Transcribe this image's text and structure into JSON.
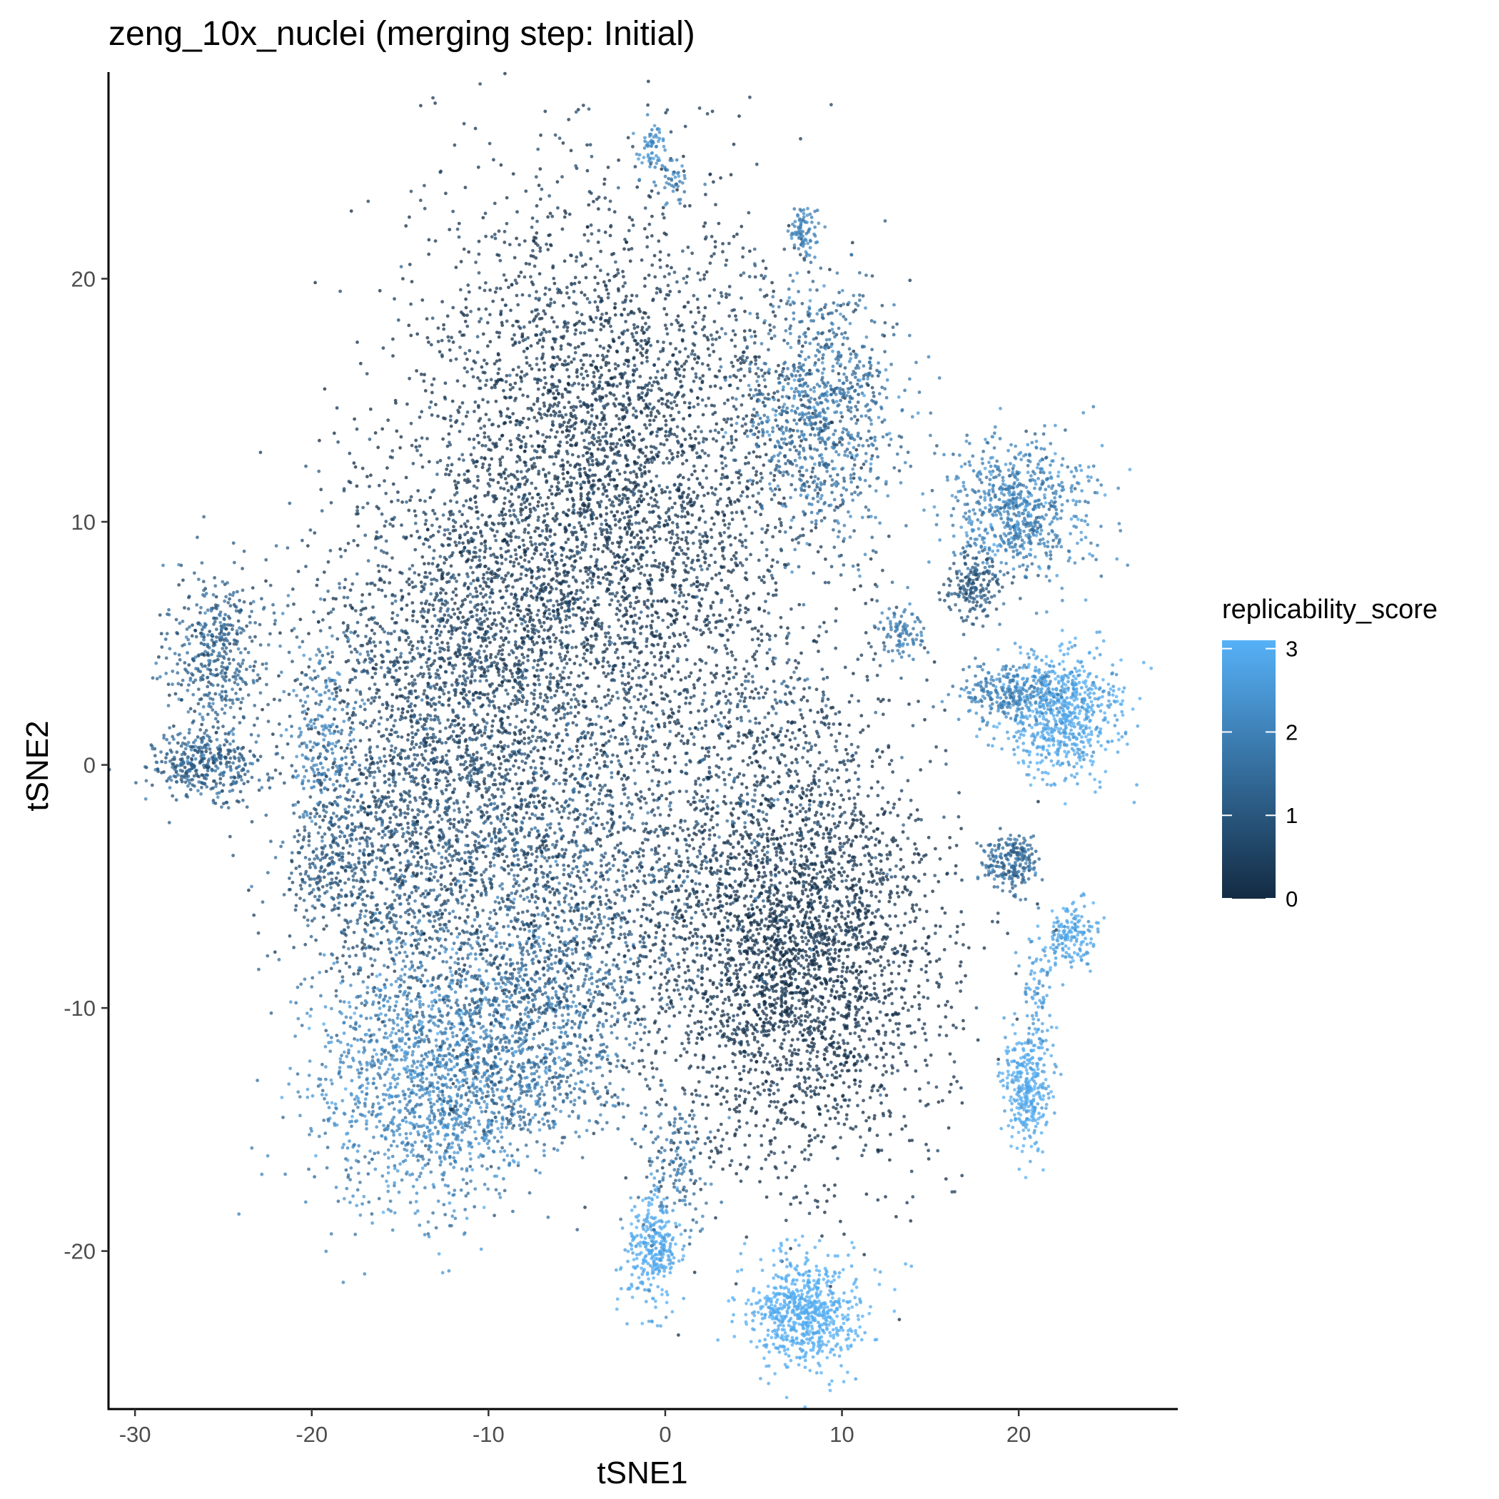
{
  "chart_data": {
    "type": "scatter",
    "title": "zeng_10x_nuclei (merging step: Initial)",
    "xlabel": "tSNE1",
    "ylabel": "tSNE2",
    "xlim": [
      -31.5,
      29
    ],
    "ylim": [
      -26.5,
      28.5
    ],
    "x_ticks": [
      -30,
      -20,
      -10,
      0,
      10,
      20
    ],
    "y_ticks": [
      -20,
      -10,
      0,
      10,
      20
    ],
    "x_tick_labels": [
      "-30",
      "-20",
      "-10",
      "0",
      "10",
      "20"
    ],
    "y_tick_labels": [
      "-20",
      "-10",
      "0",
      "10",
      "20"
    ],
    "grid": false,
    "color_variable": "replicability_score",
    "color_range": [
      0,
      3.1
    ],
    "color_low": "#132b43",
    "color_high": "#56b1f7",
    "legend": {
      "title": "replicability_score",
      "position": "right",
      "ticks": [
        0,
        1,
        2,
        3
      ],
      "tick_labels": [
        "0",
        "1",
        "2",
        "3"
      ]
    },
    "clusters": [
      {
        "cx": -3.5,
        "cy": 11.5,
        "sx": 5.5,
        "sy": 6.0,
        "score": 0.25,
        "score_sd": 0.3,
        "n": 4200
      },
      {
        "cx": -12,
        "cy": 3,
        "sx": 4.5,
        "sy": 4.0,
        "score": 0.55,
        "score_sd": 0.4,
        "n": 2000
      },
      {
        "cx": -15,
        "cy": -4.5,
        "sx": 3.0,
        "sy": 3.0,
        "score": 0.9,
        "score_sd": 0.4,
        "n": 900
      },
      {
        "cx": -19.5,
        "cy": 1.5,
        "sx": 1.0,
        "sy": 2.0,
        "score": 2.0,
        "score_sd": 0.3,
        "n": 200
      },
      {
        "cx": -19,
        "cy": -4,
        "sx": 1.2,
        "sy": 1.5,
        "score": 1.0,
        "score_sd": 0.3,
        "n": 200
      },
      {
        "cx": -14,
        "cy": -13,
        "sx": 3.0,
        "sy": 2.6,
        "score": 2.1,
        "score_sd": 0.4,
        "n": 1300
      },
      {
        "cx": -8,
        "cy": -11,
        "sx": 3.0,
        "sy": 2.8,
        "score": 1.5,
        "score_sd": 0.5,
        "n": 1100
      },
      {
        "cx": -5,
        "cy": -5,
        "sx": 4.0,
        "sy": 3.5,
        "score": 0.8,
        "score_sd": 0.5,
        "n": 1200
      },
      {
        "cx": 7.5,
        "cy": -8,
        "sx": 4.0,
        "sy": 4.2,
        "score": 0.15,
        "score_sd": 0.25,
        "n": 3000
      },
      {
        "cx": 9,
        "cy": 14.5,
        "sx": 2.3,
        "sy": 2.6,
        "score": 1.6,
        "score_sd": 0.45,
        "n": 900
      },
      {
        "cx": -25.5,
        "cy": 4.5,
        "sx": 1.4,
        "sy": 1.7,
        "score": 1.2,
        "score_sd": 0.4,
        "n": 450
      },
      {
        "cx": -26,
        "cy": 0,
        "sx": 1.6,
        "sy": 0.7,
        "score": 1.2,
        "score_sd": 0.4,
        "n": 350
      },
      {
        "cx": 20,
        "cy": 10.5,
        "sx": 2.0,
        "sy": 1.4,
        "score": 2.0,
        "score_sd": 0.4,
        "n": 700
      },
      {
        "cx": 17.5,
        "cy": 7.3,
        "sx": 0.8,
        "sy": 0.7,
        "score": 1.0,
        "score_sd": 0.3,
        "n": 180
      },
      {
        "cx": 22.5,
        "cy": 2.2,
        "sx": 1.6,
        "sy": 1.3,
        "score": 2.8,
        "score_sd": 0.3,
        "n": 700
      },
      {
        "cx": 19.5,
        "cy": 3.0,
        "sx": 1.4,
        "sy": 0.6,
        "score": 2.0,
        "score_sd": 0.3,
        "n": 250
      },
      {
        "cx": 19.5,
        "cy": -4,
        "sx": 0.8,
        "sy": 0.6,
        "score": 1.5,
        "score_sd": 0.3,
        "n": 220
      },
      {
        "cx": 23,
        "cy": -7.0,
        "sx": 0.8,
        "sy": 0.7,
        "score": 2.8,
        "score_sd": 0.2,
        "n": 160
      },
      {
        "cx": 21,
        "cy": -10,
        "sx": 0.5,
        "sy": 1.6,
        "score": 2.6,
        "score_sd": 0.3,
        "n": 100
      },
      {
        "cx": 20.5,
        "cy": -13.5,
        "sx": 0.7,
        "sy": 1.2,
        "score": 2.9,
        "score_sd": 0.2,
        "n": 300
      },
      {
        "cx": 7.8,
        "cy": -22.5,
        "sx": 1.6,
        "sy": 1.1,
        "score": 3.0,
        "score_sd": 0.15,
        "n": 700
      },
      {
        "cx": -0.7,
        "cy": -20,
        "sx": 0.8,
        "sy": 1.2,
        "score": 2.9,
        "score_sd": 0.2,
        "n": 300
      },
      {
        "cx": 0.5,
        "cy": -16.5,
        "sx": 1.0,
        "sy": 1.5,
        "score": 1.5,
        "score_sd": 0.4,
        "n": 150
      },
      {
        "cx": 13.5,
        "cy": 5.5,
        "sx": 0.6,
        "sy": 0.5,
        "score": 1.8,
        "score_sd": 0.3,
        "n": 90
      },
      {
        "cx": 7.8,
        "cy": 22.0,
        "sx": 0.4,
        "sy": 0.5,
        "score": 2.0,
        "score_sd": 0.2,
        "n": 80
      },
      {
        "cx": -0.8,
        "cy": 25.5,
        "sx": 0.4,
        "sy": 0.5,
        "score": 2.3,
        "score_sd": 0.2,
        "n": 60
      },
      {
        "cx": 0.5,
        "cy": 24.0,
        "sx": 0.5,
        "sy": 0.5,
        "score": 2.0,
        "score_sd": 0.3,
        "n": 40
      },
      {
        "cx": 5,
        "cy": 0,
        "sx": 4.0,
        "sy": 4.0,
        "score": 0.6,
        "score_sd": 0.5,
        "n": 700
      }
    ]
  }
}
